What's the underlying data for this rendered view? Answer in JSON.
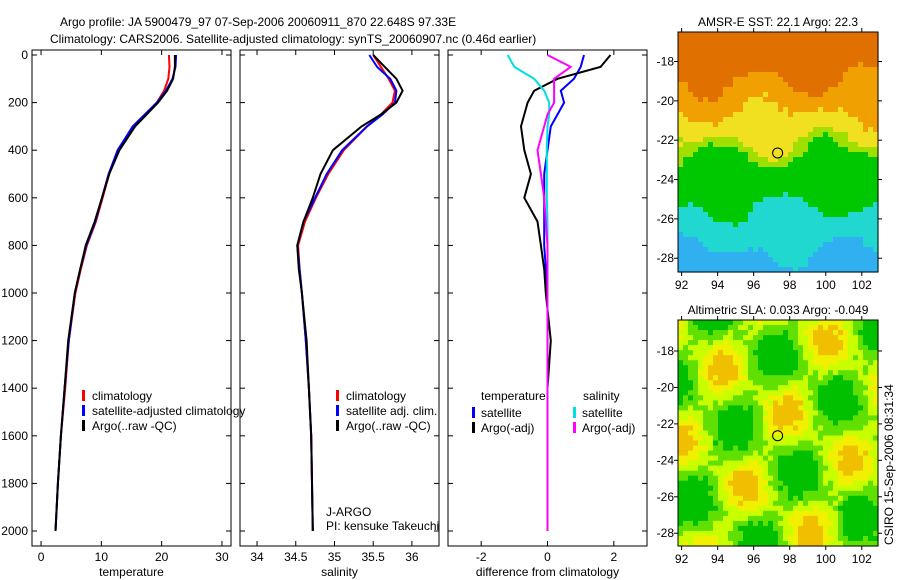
{
  "title_line1": "Argo profile: JA 5900479_97 07-Sep-2006 20060911_870 22.648S 97.33E",
  "title_line2": "Climatology: CARS2006. Satellite-adjusted climatology: synTS_20060907.nc (0.46d earlier)",
  "side_label": "CSIRO 15-Sep-2006 08:31:34",
  "chart_data": [
    {
      "type": "line",
      "id": "temperature",
      "xlabel": "temperature",
      "xlim": [
        -1.5,
        31.5
      ],
      "xticks": [
        0,
        10,
        20,
        30
      ],
      "ylim": [
        0,
        2000
      ],
      "yticks": [
        0,
        200,
        400,
        600,
        800,
        1000,
        1200,
        1400,
        1600,
        1800,
        2000
      ],
      "yreversed": true,
      "depth": [
        0,
        50,
        100,
        150,
        200,
        250,
        300,
        400,
        500,
        600,
        700,
        800,
        900,
        1000,
        1200,
        1400,
        1600,
        1800,
        2000
      ],
      "series": [
        {
          "name": "climatology",
          "color": "#ff0000",
          "values": [
            21.2,
            21.3,
            21.1,
            20.4,
            19.2,
            17.4,
            15.3,
            12.8,
            11.3,
            10.2,
            9.1,
            7.6,
            6.6,
            5.7,
            4.6,
            4.0,
            3.3,
            2.8,
            2.4
          ]
        },
        {
          "name": "satellite-adjusted climatology",
          "color": "#0000ff",
          "values": [
            22.4,
            22.3,
            21.8,
            20.7,
            19.2,
            17.2,
            15.2,
            12.7,
            11.2,
            10.1,
            9.0,
            7.5,
            6.5,
            5.6,
            4.6,
            3.9,
            3.3,
            2.8,
            2.4
          ]
        },
        {
          "name": "Argo(..raw -QC)",
          "color": "#000000",
          "values": [
            22.2,
            22.2,
            21.9,
            20.9,
            19.4,
            17.5,
            15.6,
            13.0,
            11.3,
            10.1,
            8.9,
            7.4,
            6.5,
            5.6,
            4.5,
            3.9,
            3.3,
            2.8,
            2.4
          ]
        }
      ],
      "legend": [
        "climatology",
        "satellite-adjusted climatology",
        "Argo(..raw -QC)"
      ]
    },
    {
      "type": "line",
      "id": "salinity",
      "xlabel": "salinity",
      "xlim": [
        33.78,
        36.35
      ],
      "xticks": [
        34,
        34.5,
        35,
        35.5,
        36
      ],
      "ylim": [
        0,
        2000
      ],
      "yreversed": true,
      "depth": [
        0,
        50,
        100,
        150,
        200,
        250,
        300,
        400,
        500,
        600,
        700,
        800,
        900,
        1000,
        1200,
        1400,
        1600,
        1800,
        2000
      ],
      "series": [
        {
          "name": "climatology",
          "color": "#ff0000",
          "values": [
            35.5,
            35.6,
            35.7,
            35.78,
            35.75,
            35.6,
            35.42,
            35.12,
            34.92,
            34.76,
            34.62,
            34.53,
            34.55,
            34.58,
            34.63,
            34.67,
            34.7,
            34.71,
            34.72
          ]
        },
        {
          "name": "satellite adj. clim.",
          "color": "#0000ff",
          "values": [
            35.45,
            35.55,
            35.72,
            35.8,
            35.78,
            35.62,
            35.42,
            35.1,
            34.9,
            34.75,
            34.6,
            34.52,
            34.55,
            34.58,
            34.63,
            34.67,
            34.7,
            34.71,
            34.72
          ]
        },
        {
          "name": "Argo(..raw -QC)",
          "color": "#000000",
          "values": [
            35.5,
            35.65,
            35.8,
            35.88,
            35.8,
            35.6,
            35.35,
            34.98,
            34.82,
            34.72,
            34.6,
            34.52,
            34.54,
            34.58,
            34.64,
            34.67,
            34.7,
            34.71,
            34.72
          ]
        }
      ],
      "legend": [
        "climatology",
        "satellite adj. clim.",
        "Argo(..raw -QC)"
      ],
      "annotation": [
        "J-ARGO",
        "PI: kensuke Takeuchi"
      ]
    },
    {
      "type": "line",
      "id": "difference",
      "xlabel": "difference from climatology",
      "xlim": [
        -3,
        3
      ],
      "xticks": [
        -2,
        0,
        2
      ],
      "ylim": [
        0,
        2000
      ],
      "yreversed": true,
      "depth": [
        0,
        50,
        100,
        150,
        200,
        250,
        300,
        400,
        500,
        600,
        700,
        800,
        900,
        1000,
        1200,
        1400,
        1600,
        1800,
        2000
      ],
      "series": [
        {
          "name": "temperature satellite",
          "color": "#0000ff",
          "values": [
            1.1,
            1.0,
            0.8,
            0.4,
            0.5,
            0.3,
            0.1,
            0.0,
            -0.1,
            -0.1,
            -0.1,
            -0.1,
            -0.05,
            0.0,
            0.0,
            0.0,
            0.0,
            0.0,
            0.0
          ]
        },
        {
          "name": "temperature Argo(-adj)",
          "color": "#000000",
          "values": [
            1.9,
            1.6,
            0.3,
            -0.4,
            -0.6,
            -0.7,
            -0.8,
            -0.7,
            -0.5,
            -0.7,
            -0.3,
            -0.2,
            -0.1,
            -0.05,
            0.1,
            0.0,
            0.0,
            0.0,
            0.0
          ]
        },
        {
          "name": "salinity satellite",
          "color": "#00e0e0",
          "values": [
            -1.2,
            -1.0,
            -0.4,
            -0.1,
            0.05,
            0.05,
            0.0,
            -0.02,
            -0.02,
            -0.02,
            0.0,
            0.0,
            0.0,
            0.0,
            0.0,
            0.0,
            0.0,
            0.0,
            0.0
          ]
        },
        {
          "name": "salinity Argo(-adj)",
          "color": "#ff00ff",
          "values": [
            0.0,
            0.7,
            0.2,
            0.2,
            0.2,
            0.0,
            -0.1,
            -0.3,
            -0.2,
            -0.1,
            -0.05,
            0.0,
            0.0,
            0.0,
            0.0,
            0.0,
            0.0,
            0.0,
            0.0
          ]
        }
      ],
      "legend_headers": [
        "temperature",
        "salinity"
      ],
      "legend": [
        "satellite",
        "Argo(-adj)",
        "satellite",
        "Argo(-adj)"
      ]
    },
    {
      "type": "heatmap",
      "id": "sst-map",
      "title": "AMSR-E SST: 22.1 Argo: 22.3",
      "xlim": [
        91.8,
        102.9
      ],
      "ylim": [
        -28.7,
        -16.5
      ],
      "xticks": [
        92,
        94,
        96,
        98,
        100,
        102
      ],
      "yticks": [
        -18,
        -20,
        -22,
        -24,
        -26,
        -28
      ],
      "marker": [
        97.33,
        -22.648
      ]
    },
    {
      "type": "heatmap",
      "id": "sla-map",
      "title": "Altimetric SLA: 0.033 Argo: -0.049",
      "xlim": [
        91.8,
        102.9
      ],
      "ylim": [
        -28.7,
        -16.3
      ],
      "xticks": [
        92,
        94,
        96,
        98,
        100,
        102
      ],
      "yticks": [
        -18,
        -20,
        -22,
        -24,
        -26,
        -28
      ],
      "marker": [
        97.33,
        -22.648
      ]
    }
  ]
}
